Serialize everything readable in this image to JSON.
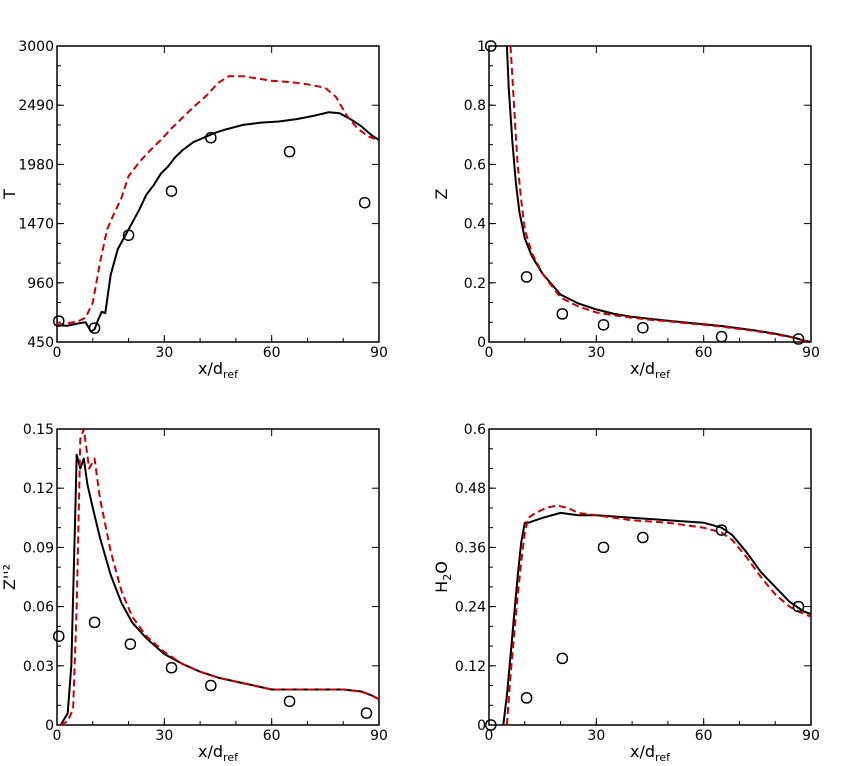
{
  "chart_data": [
    {
      "type": "line",
      "panel": "top-left",
      "ylabel_main": "T",
      "ylabel_sub": "",
      "xlabel_main": "x/d",
      "xlabel_sub": "ref",
      "xlim": [
        0,
        90
      ],
      "ylim": [
        450,
        3000
      ],
      "xticks": [
        0,
        30,
        60,
        90
      ],
      "xtick_labels": [
        "0",
        "30",
        "60",
        "90"
      ],
      "yticks": [
        450,
        960,
        1470,
        1980,
        2490,
        3000
      ],
      "ytick_labels": [
        "450",
        "960",
        "1470",
        "1980",
        "2490",
        "3000"
      ],
      "series": [
        {
          "style": "solid",
          "color": "#000000",
          "x": [
            0,
            3,
            6,
            8,
            9.5,
            10.5,
            11.5,
            12.5,
            13.5,
            15,
            17,
            20,
            23,
            25,
            27,
            29,
            31,
            33,
            35,
            38,
            41,
            44,
            47,
            52,
            57,
            62,
            67,
            72,
            76,
            79,
            82,
            85,
            88,
            90
          ],
          "y": [
            595,
            590,
            610,
            620,
            540,
            560,
            640,
            710,
            700,
            1030,
            1250,
            1420,
            1590,
            1720,
            1800,
            1900,
            1960,
            2040,
            2100,
            2170,
            2210,
            2250,
            2280,
            2320,
            2340,
            2350,
            2370,
            2400,
            2430,
            2420,
            2370,
            2310,
            2230,
            2190
          ]
        },
        {
          "style": "dashed",
          "color": "#cc0000",
          "x": [
            0,
            3,
            6,
            8,
            10,
            12,
            14,
            16,
            18,
            20,
            23,
            26,
            29,
            32,
            35,
            38,
            42,
            45,
            48,
            52,
            56,
            60,
            65,
            70,
            75,
            78,
            81,
            84,
            87,
            90
          ],
          "y": [
            600,
            610,
            630,
            660,
            790,
            1130,
            1420,
            1560,
            1690,
            1880,
            2000,
            2100,
            2190,
            2290,
            2380,
            2470,
            2580,
            2680,
            2740,
            2740,
            2720,
            2700,
            2690,
            2670,
            2640,
            2560,
            2400,
            2290,
            2220,
            2190
          ]
        },
        {
          "style": "marker-circle",
          "color": "#000000",
          "x": [
            0.5,
            10.5,
            20,
            32,
            43,
            65,
            86
          ],
          "y": [
            630,
            570,
            1370,
            1750,
            2210,
            2090,
            1650
          ]
        }
      ]
    },
    {
      "type": "line",
      "panel": "top-right",
      "ylabel_main": "Z",
      "ylabel_sub": "",
      "xlabel_main": "x/d",
      "xlabel_sub": "ref",
      "xlim": [
        0,
        90
      ],
      "ylim": [
        0,
        1
      ],
      "xticks": [
        0,
        30,
        60,
        90
      ],
      "xtick_labels": [
        "0",
        "30",
        "60",
        "90"
      ],
      "yticks": [
        0,
        0.2,
        0.4,
        0.6,
        0.8,
        1
      ],
      "ytick_labels": [
        "0",
        "0.2",
        "0.4",
        "0.6",
        "0.8",
        "1"
      ],
      "series": [
        {
          "style": "solid",
          "color": "#000000",
          "x": [
            5,
            5.5,
            6.5,
            7.5,
            8.5,
            10,
            12,
            15,
            20,
            25,
            30,
            35,
            40,
            45,
            50,
            55,
            60,
            65,
            70,
            75,
            80,
            85,
            88,
            90
          ],
          "y": [
            1.0,
            0.86,
            0.68,
            0.54,
            0.44,
            0.35,
            0.29,
            0.23,
            0.16,
            0.13,
            0.11,
            0.095,
            0.085,
            0.078,
            0.072,
            0.066,
            0.06,
            0.054,
            0.046,
            0.038,
            0.028,
            0.016,
            0.005,
            0.0
          ]
        },
        {
          "style": "dashed",
          "color": "#cc0000",
          "x": [
            6,
            6.5,
            7,
            8,
            9,
            10,
            12,
            15,
            20,
            25,
            30,
            35,
            40,
            45,
            50,
            55,
            60,
            65,
            70,
            75,
            80,
            85,
            88,
            90
          ],
          "y": [
            1.0,
            0.9,
            0.8,
            0.6,
            0.48,
            0.38,
            0.3,
            0.23,
            0.15,
            0.12,
            0.1,
            0.09,
            0.082,
            0.075,
            0.07,
            0.064,
            0.058,
            0.052,
            0.044,
            0.036,
            0.026,
            0.015,
            0.004,
            0.0
          ]
        },
        {
          "style": "marker-circle",
          "color": "#000000",
          "x": [
            0.5,
            10.5,
            20.5,
            32,
            43,
            65,
            86.5
          ],
          "y": [
            1.0,
            0.22,
            0.095,
            0.058,
            0.048,
            0.018,
            0.01
          ]
        }
      ]
    },
    {
      "type": "line",
      "panel": "bottom-left",
      "ylabel_main": "Z''²",
      "ylabel_sub": "",
      "xlabel_main": "x/d",
      "xlabel_sub": "ref",
      "xlim": [
        0,
        90
      ],
      "ylim": [
        0,
        0.15
      ],
      "xticks": [
        0,
        30,
        60,
        90
      ],
      "xtick_labels": [
        "0",
        "30",
        "60",
        "90"
      ],
      "yticks": [
        0,
        0.03,
        0.06,
        0.09,
        0.12,
        0.15
      ],
      "ytick_labels": [
        "0",
        "0.03",
        "0.06",
        "0.09",
        "0.12",
        "0.15"
      ],
      "series": [
        {
          "style": "solid",
          "color": "#000000",
          "x": [
            1,
            2,
            3,
            4,
            5,
            5.5,
            6.5,
            7.5,
            8.5,
            10,
            12,
            15,
            18,
            21,
            25,
            30,
            35,
            40,
            45,
            50,
            55,
            60,
            65,
            70,
            75,
            80,
            85,
            88,
            90
          ],
          "y": [
            0.0,
            0.003,
            0.006,
            0.03,
            0.1,
            0.137,
            0.13,
            0.135,
            0.122,
            0.11,
            0.095,
            0.076,
            0.062,
            0.052,
            0.044,
            0.036,
            0.031,
            0.027,
            0.024,
            0.022,
            0.02,
            0.018,
            0.018,
            0.018,
            0.018,
            0.018,
            0.017,
            0.015,
            0.013
          ]
        },
        {
          "style": "dashed",
          "color": "#cc0000",
          "x": [
            1,
            3,
            4.5,
            5.5,
            6.5,
            7.5,
            9,
            10.5,
            12,
            15,
            18,
            21,
            25,
            30,
            35,
            40,
            45,
            50,
            55,
            60,
            65,
            70,
            75,
            80,
            85,
            88,
            90
          ],
          "y": [
            0.0,
            0.002,
            0.008,
            0.06,
            0.145,
            0.15,
            0.13,
            0.135,
            0.115,
            0.088,
            0.068,
            0.055,
            0.045,
            0.037,
            0.031,
            0.027,
            0.024,
            0.022,
            0.02,
            0.018,
            0.018,
            0.018,
            0.018,
            0.018,
            0.017,
            0.015,
            0.013
          ]
        },
        {
          "style": "marker-circle",
          "color": "#000000",
          "x": [
            0.5,
            10.5,
            20.5,
            32,
            43,
            65,
            86.5
          ],
          "y": [
            0.045,
            0.052,
            0.041,
            0.029,
            0.02,
            0.012,
            0.006
          ]
        }
      ]
    },
    {
      "type": "line",
      "panel": "bottom-right",
      "ylabel_main": "H",
      "ylabel_sub": "2",
      "ylabel_tail": "O",
      "xlabel_main": "x/d",
      "xlabel_sub": "ref",
      "xlim": [
        0,
        90
      ],
      "ylim": [
        0,
        0.6
      ],
      "xticks": [
        0,
        30,
        60,
        90
      ],
      "xtick_labels": [
        "0",
        "30",
        "60",
        "90"
      ],
      "yticks": [
        0,
        0.12,
        0.24,
        0.36,
        0.48,
        0.6
      ],
      "ytick_labels": [
        "0",
        "0.12",
        "0.24",
        "0.36",
        "0.48",
        "0.6"
      ],
      "series": [
        {
          "style": "solid",
          "color": "#000000",
          "x": [
            4,
            5,
            6,
            7,
            8,
            9,
            10,
            11,
            15,
            20,
            25,
            30,
            40,
            50,
            60,
            65,
            68,
            72,
            76,
            80,
            84,
            88,
            90
          ],
          "y": [
            0.0,
            0.06,
            0.14,
            0.22,
            0.3,
            0.37,
            0.41,
            0.41,
            0.42,
            0.43,
            0.425,
            0.425,
            0.42,
            0.415,
            0.41,
            0.4,
            0.385,
            0.35,
            0.31,
            0.28,
            0.25,
            0.23,
            0.225
          ]
        },
        {
          "style": "dashed",
          "color": "#cc0000",
          "x": [
            5,
            6,
            7,
            8,
            9,
            10,
            11,
            13,
            16,
            19,
            22,
            25,
            30,
            40,
            50,
            60,
            65,
            68,
            72,
            76,
            80,
            84,
            88,
            90
          ],
          "y": [
            0.0,
            0.1,
            0.18,
            0.26,
            0.33,
            0.39,
            0.42,
            0.43,
            0.44,
            0.445,
            0.44,
            0.43,
            0.425,
            0.415,
            0.41,
            0.4,
            0.39,
            0.375,
            0.34,
            0.3,
            0.265,
            0.24,
            0.225,
            0.22
          ]
        },
        {
          "style": "marker-circle",
          "color": "#000000",
          "x": [
            0.5,
            10.5,
            20.5,
            32,
            43,
            65,
            86.5
          ],
          "y": [
            0.0,
            0.055,
            0.135,
            0.36,
            0.38,
            0.395,
            0.24
          ]
        }
      ]
    }
  ]
}
